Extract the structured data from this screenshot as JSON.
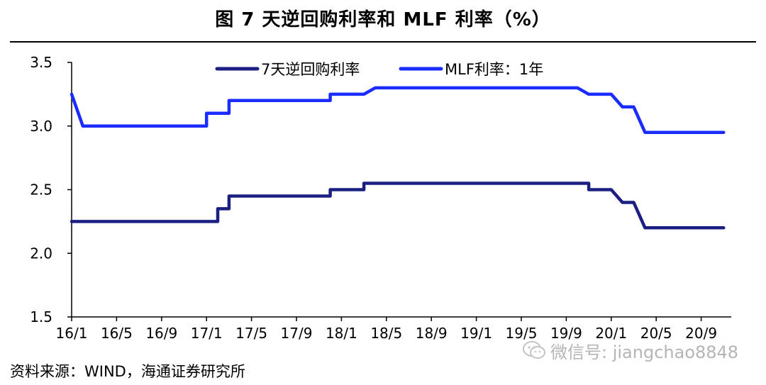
{
  "chart_data": {
    "type": "line",
    "title": "图 7 天逆回购利率和 MLF 利率（%）",
    "source": "资料来源：WIND，海通证券研究所",
    "watermark": "微信号: jiangchao8848",
    "xlabel": "",
    "ylabel": "",
    "x_tick_labels": [
      "16/1",
      "16/5",
      "16/9",
      "17/1",
      "17/5",
      "17/9",
      "18/1",
      "18/5",
      "18/9",
      "19/1",
      "19/5",
      "19/9",
      "20/1",
      "20/5",
      "20/9"
    ],
    "x_range": [
      "2016-01",
      "2020-11"
    ],
    "ylim": [
      1.5,
      3.5
    ],
    "y_ticks": [
      "3.5",
      "3.0",
      "2.5",
      "2.0",
      "1.5"
    ],
    "grid": false,
    "legend": "top",
    "series": [
      {
        "name": "7天逆回购利率",
        "color": "#1b1f82",
        "points": [
          {
            "x": "2016-01",
            "y": 2.25
          },
          {
            "x": "2017-02",
            "y": 2.25
          },
          {
            "x": "2017-02",
            "y": 2.35
          },
          {
            "x": "2017-03",
            "y": 2.35
          },
          {
            "x": "2017-03",
            "y": 2.45
          },
          {
            "x": "2017-12",
            "y": 2.45
          },
          {
            "x": "2017-12",
            "y": 2.5
          },
          {
            "x": "2018-03",
            "y": 2.5
          },
          {
            "x": "2018-03",
            "y": 2.55
          },
          {
            "x": "2019-11",
            "y": 2.55
          },
          {
            "x": "2019-11",
            "y": 2.5
          },
          {
            "x": "2020-01",
            "y": 2.5
          },
          {
            "x": "2020-02",
            "y": 2.4
          },
          {
            "x": "2020-03",
            "y": 2.4
          },
          {
            "x": "2020-04",
            "y": 2.2
          },
          {
            "x": "2020-11",
            "y": 2.2
          }
        ]
      },
      {
        "name": "MLF利率：1年",
        "color": "#1a2cff",
        "points": [
          {
            "x": "2016-01",
            "y": 3.25
          },
          {
            "x": "2016-02",
            "y": 3.0
          },
          {
            "x": "2017-01",
            "y": 3.0
          },
          {
            "x": "2017-01",
            "y": 3.1
          },
          {
            "x": "2017-03",
            "y": 3.1
          },
          {
            "x": "2017-03",
            "y": 3.2
          },
          {
            "x": "2017-12",
            "y": 3.2
          },
          {
            "x": "2017-12",
            "y": 3.25
          },
          {
            "x": "2018-03",
            "y": 3.25
          },
          {
            "x": "2018-04",
            "y": 3.3
          },
          {
            "x": "2019-10",
            "y": 3.3
          },
          {
            "x": "2019-11",
            "y": 3.25
          },
          {
            "x": "2020-01",
            "y": 3.25
          },
          {
            "x": "2020-02",
            "y": 3.15
          },
          {
            "x": "2020-03",
            "y": 3.15
          },
          {
            "x": "2020-04",
            "y": 2.95
          },
          {
            "x": "2020-11",
            "y": 2.95
          }
        ]
      }
    ]
  }
}
